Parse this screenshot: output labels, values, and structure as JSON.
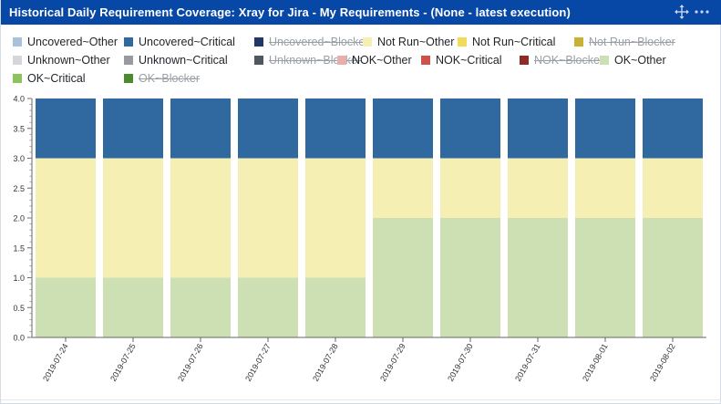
{
  "header": {
    "title": "Historical Daily Requirement Coverage: Xray for Jira - My Requirements - (None - latest execution)",
    "move_icon": "move-arrows-icon",
    "more_icon": "more-dots-icon"
  },
  "legend": [
    {
      "label": "Uncovered~Other",
      "color": "#a8c2dc",
      "hidden": false
    },
    {
      "label": "Uncovered~Critical",
      "color": "#2f69a0",
      "hidden": false
    },
    {
      "label": "Uncovered~Blocker",
      "color": "#1d3a67",
      "hidden": true
    },
    {
      "label": "Not Run~Other",
      "color": "#f6efb3",
      "hidden": false
    },
    {
      "label": "Not Run~Critical",
      "color": "#f0dc5a",
      "hidden": false
    },
    {
      "label": "Not Run~Blocker",
      "color": "#c8b233",
      "hidden": true
    },
    {
      "label": "Unknown~Other",
      "color": "#d4d6da",
      "hidden": false
    },
    {
      "label": "Unknown~Critical",
      "color": "#979ba1",
      "hidden": false
    },
    {
      "label": "Unknown~Blocker",
      "color": "#515760",
      "hidden": true
    },
    {
      "label": "NOK~Other",
      "color": "#e8aeaa",
      "hidden": false
    },
    {
      "label": "NOK~Critical",
      "color": "#d0504a",
      "hidden": false
    },
    {
      "label": "NOK~Blocker",
      "color": "#8e2b25",
      "hidden": true
    },
    {
      "label": "OK~Other",
      "color": "#cde0b3",
      "hidden": false
    },
    {
      "label": "OK~Critical",
      "color": "#8cc35f",
      "hidden": false
    },
    {
      "label": "OK~Blocker",
      "color": "#4b8b2b",
      "hidden": true
    }
  ],
  "chart_data": {
    "type": "bar",
    "stacked": true,
    "categories": [
      "2019-07-24",
      "2019-07-25",
      "2019-07-26",
      "2019-07-27",
      "2019-07-28",
      "2019-07-29",
      "2019-07-30",
      "2019-07-31",
      "2019-08-01",
      "2019-08-02"
    ],
    "series": [
      {
        "name": "OK~Other",
        "color": "#cde0b3",
        "values": [
          1,
          1,
          1,
          1,
          1,
          2,
          2,
          2,
          2,
          2
        ]
      },
      {
        "name": "Not Run~Other",
        "color": "#f6efb3",
        "values": [
          2,
          2,
          2,
          2,
          2,
          1,
          1,
          1,
          1,
          1
        ]
      },
      {
        "name": "Uncovered~Critical",
        "color": "#2f69a0",
        "values": [
          1,
          1,
          1,
          1,
          1,
          1,
          1,
          1,
          1,
          1
        ]
      }
    ],
    "ylim": [
      0,
      4
    ],
    "yticks": [
      "0.0",
      "0.5",
      "1.0",
      "1.5",
      "2.0",
      "2.5",
      "3.0",
      "3.5",
      "4.0"
    ],
    "grid": false,
    "legend_position": "top",
    "xlabel": "",
    "ylabel": ""
  }
}
